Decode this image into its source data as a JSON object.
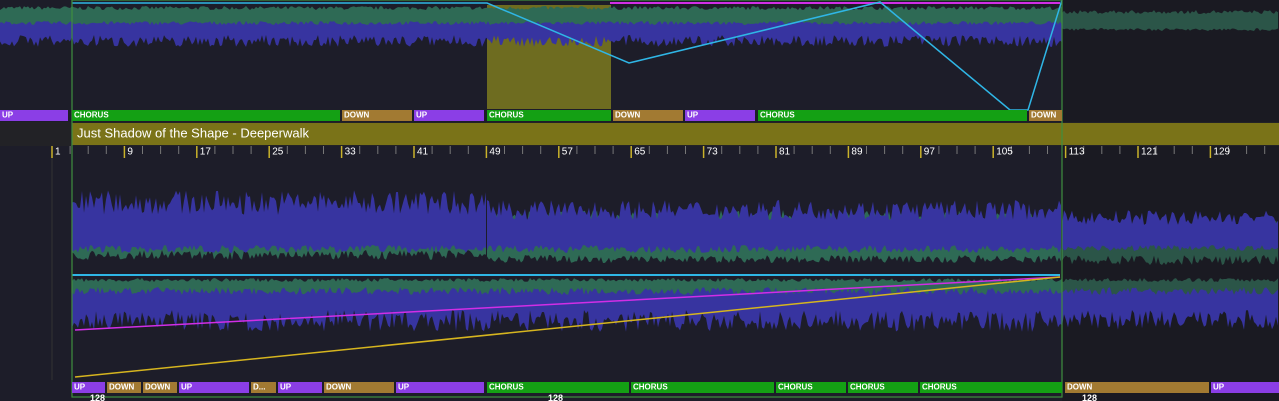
{
  "top_lane": {
    "sections": [
      {
        "label": "UP",
        "color": "#8b3ee6"
      },
      {
        "label": "CHORUS",
        "color": "#14a014"
      },
      {
        "label": "DOWN",
        "color": "#a27a32"
      },
      {
        "label": "UP",
        "color": "#8b3ee6"
      },
      {
        "label": "CHORUS",
        "color": "#14a014"
      },
      {
        "label": "DOWN",
        "color": "#a27a32"
      },
      {
        "label": "UP",
        "color": "#8b3ee6"
      },
      {
        "label": "CHORUS",
        "color": "#14a014"
      },
      {
        "label": "DOWN",
        "color": "#a27a32"
      }
    ]
  },
  "track": {
    "title": "Just Shadow of the Shape - Deeperwalk",
    "bar_numbers": [
      "1",
      "9",
      "17",
      "25",
      "33",
      "41",
      "49",
      "57",
      "65",
      "73",
      "81",
      "89",
      "97",
      "105",
      "113",
      "121",
      "129"
    ],
    "sections": [
      {
        "label": "UP",
        "color": "#8b3ee6"
      },
      {
        "label": "DOWN",
        "color": "#a27a32"
      },
      {
        "label": "DOWN",
        "color": "#a27a32"
      },
      {
        "label": "UP",
        "color": "#8b3ee6"
      },
      {
        "label": "D...",
        "color": "#a27a32"
      },
      {
        "label": "UP",
        "color": "#8b3ee6"
      },
      {
        "label": "DOWN",
        "color": "#a27a32"
      },
      {
        "label": "UP",
        "color": "#8b3ee6"
      },
      {
        "label": "CHORUS",
        "color": "#14a014"
      },
      {
        "label": "CHORUS",
        "color": "#14a014"
      },
      {
        "label": "CHORUS",
        "color": "#14a014"
      },
      {
        "label": "CHORUS",
        "color": "#14a014"
      },
      {
        "label": "CHORUS",
        "color": "#14a014"
      },
      {
        "label": "DOWN",
        "color": "#a27a32"
      },
      {
        "label": "UP",
        "color": "#8b3ee6"
      }
    ],
    "tempo_labels": [
      "128",
      "128",
      "128"
    ]
  }
}
